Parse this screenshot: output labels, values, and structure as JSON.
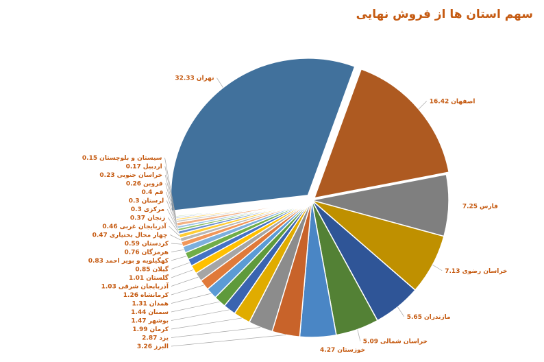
{
  "chart_data": {
    "type": "pie",
    "title": "سهم استان ها از فروش نهایی",
    "categories": [
      "اصفهان",
      "فارس",
      "خراسان رضوی",
      "مازندران",
      "خراسان شمالی",
      "خوزستان",
      "البرز",
      "یزد",
      "کرمان",
      "بوشهر",
      "سمنان",
      "همدان",
      "کرمانشاه",
      "آذربایجان شرقی",
      "گلستان",
      "گیلان",
      "کهگیلویه و بویر احمد",
      "هرمزگان",
      "کردستان",
      "چهار محال بختیاری",
      "آذربایجان غربی",
      "زنجان",
      "مرکزی",
      "لرستان",
      "قم",
      "قزوین",
      "خراسان جنوبی",
      "اردبیل",
      "سیستان و بلوچستان",
      "تهران"
    ],
    "values": [
      16.42,
      7.25,
      7.13,
      5.65,
      5.09,
      4.27,
      3.26,
      2.87,
      1.99,
      1.47,
      1.44,
      1.31,
      1.26,
      1.03,
      1.01,
      0.85,
      0.83,
      0.76,
      0.59,
      0.47,
      0.46,
      0.37,
      0.3,
      0.3,
      0.4,
      0.26,
      0.23,
      0.17,
      0.15,
      32.33
    ],
    "colors": [
      "#ae5a21",
      "#7f7f7f",
      "#bf9000",
      "#2f5597",
      "#538135",
      "#4a86c5",
      "#c8632a",
      "#8c8c8c",
      "#e0ac00",
      "#3a64b0",
      "#5f9a3c",
      "#5b9bd5",
      "#e07a3a",
      "#a5a5a5",
      "#ffc000",
      "#4472c4",
      "#70ad47",
      "#7cafdd",
      "#f1975a",
      "#b7b7b7",
      "#ffcd33",
      "#698ed0",
      "#8cc168",
      "#9dc3e6",
      "#f4b183",
      "#c9c9c9",
      "#ffd966",
      "#8faadc",
      "#a9d18e",
      "#41719c"
    ]
  }
}
